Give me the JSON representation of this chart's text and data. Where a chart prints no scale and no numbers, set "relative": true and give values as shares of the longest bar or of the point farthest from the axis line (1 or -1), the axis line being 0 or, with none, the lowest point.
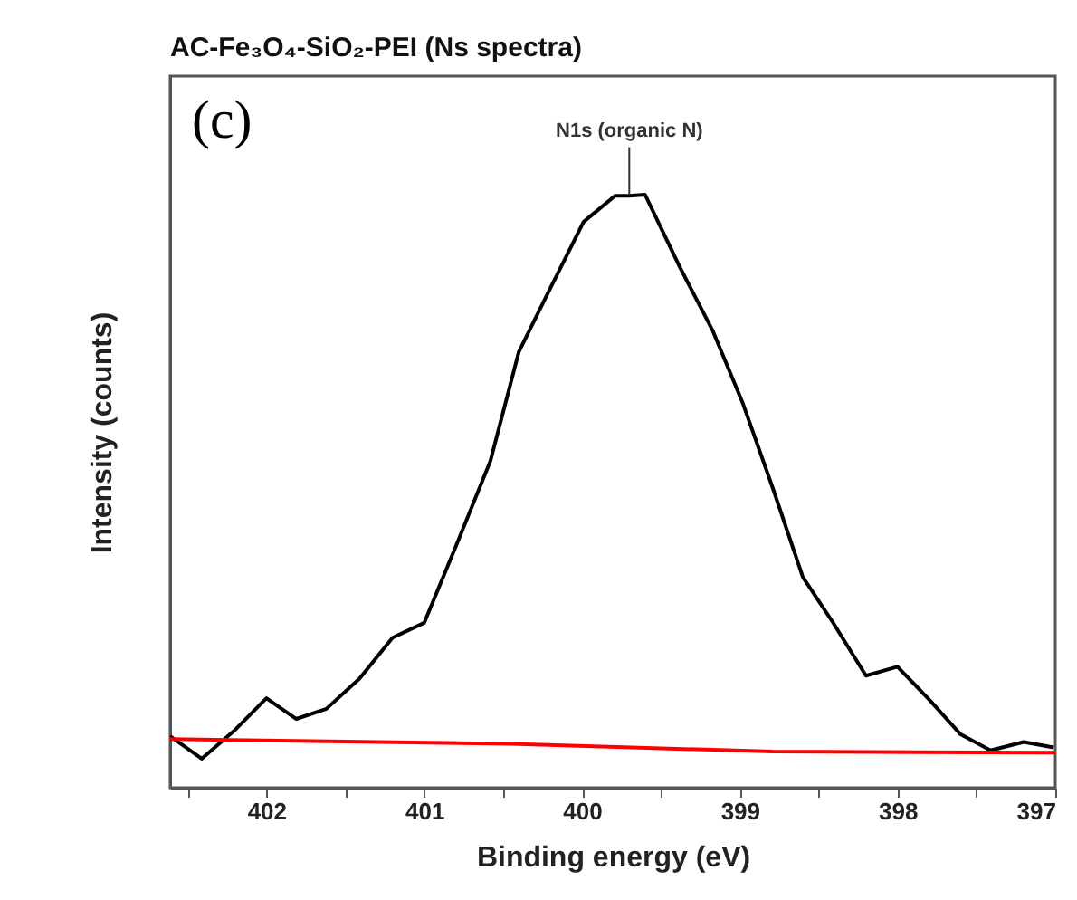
{
  "chart_data": {
    "type": "line",
    "title": "AC-Fe₃O₄-SiO₂-PEI (Ns spectra)",
    "xlabel": "Binding energy (eV)",
    "ylabel": "Intensity (counts)",
    "relative": true,
    "x": [
      402.61,
      402.41,
      402.2,
      402.0,
      401.81,
      401.62,
      401.41,
      401.2,
      401.0,
      400.79,
      400.58,
      400.4,
      400.22,
      399.99,
      399.79,
      399.7,
      399.6,
      399.38,
      399.17,
      398.98,
      398.79,
      398.6,
      398.41,
      398.2,
      398.0,
      397.79,
      397.6,
      397.41,
      397.2,
      397.01
    ],
    "series": [
      {
        "color": "#000000",
        "values": [
          0.087,
          0.049,
          0.097,
          0.151,
          0.116,
          0.133,
          0.184,
          0.253,
          0.278,
          0.413,
          0.551,
          0.735,
          0.832,
          0.954,
          0.998,
          0.998,
          1.0,
          0.878,
          0.77,
          0.648,
          0.505,
          0.355,
          0.279,
          0.189,
          0.204,
          0.146,
          0.09,
          0.063,
          0.077,
          0.068
        ]
      },
      {
        "color": "#ff0000",
        "x": [
          402.61,
          400.45,
          398.79,
          397.0
        ],
        "values": [
          0.082,
          0.074,
          0.061,
          0.059
        ]
      }
    ],
    "xlim": [
      402.61,
      397
    ],
    "xticks": [
      {
        "value": 402.5,
        "label": null
      },
      402,
      {
        "value": 401.5,
        "label": null
      },
      401,
      {
        "value": 400.5,
        "label": null
      },
      400,
      {
        "value": 399.5,
        "label": null
      },
      399,
      {
        "value": 398.5,
        "label": null
      },
      398,
      {
        "value": 397.5,
        "label": null
      },
      397
    ],
    "grid": false,
    "marker": "none",
    "line_style": "solid",
    "annotations": [
      "(c)",
      {
        "text": "N1s (organic N)",
        "x": 399.7,
        "y": 1.0
      }
    ]
  }
}
